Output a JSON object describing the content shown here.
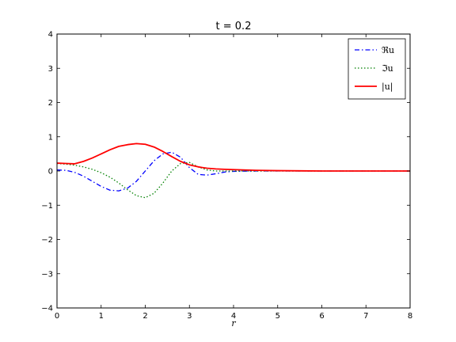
{
  "chart_data": {
    "type": "line",
    "title": "t = 0.2",
    "xlabel": "r",
    "ylabel": "",
    "xlim": [
      0,
      8
    ],
    "ylim": [
      -4,
      4
    ],
    "xticks": [
      0,
      1,
      2,
      3,
      4,
      5,
      6,
      7,
      8
    ],
    "yticks": [
      -4,
      -3,
      -2,
      -1,
      0,
      1,
      2,
      3,
      4
    ],
    "grid": false,
    "legend": "top-right",
    "series": [
      {
        "name": "ℜu",
        "color": "#0000ff",
        "style": "dashdot",
        "x": [
          0,
          0.2,
          0.4,
          0.6,
          0.8,
          1.0,
          1.2,
          1.4,
          1.6,
          1.8,
          2.0,
          2.2,
          2.4,
          2.6,
          2.8,
          3.0,
          3.2,
          3.4,
          3.6,
          3.8,
          4.0,
          4.5,
          5.0,
          6.0,
          7.0,
          8.0
        ],
        "y": [
          0.03,
          0.02,
          -0.04,
          -0.15,
          -0.3,
          -0.45,
          -0.56,
          -0.58,
          -0.5,
          -0.3,
          0.0,
          0.3,
          0.5,
          0.55,
          0.4,
          0.1,
          -0.1,
          -0.12,
          -0.08,
          -0.03,
          -0.01,
          0.0,
          0.0,
          0.0,
          0.0,
          0.0
        ]
      },
      {
        "name": "ℑu",
        "color": "#008000",
        "style": "dotted",
        "x": [
          0,
          0.2,
          0.4,
          0.6,
          0.8,
          1.0,
          1.2,
          1.4,
          1.6,
          1.8,
          2.0,
          2.2,
          2.4,
          2.6,
          2.8,
          3.0,
          3.2,
          3.4,
          3.6,
          3.8,
          4.0,
          4.5,
          5.0,
          6.0,
          7.0,
          8.0
        ],
        "y": [
          0.22,
          0.2,
          0.17,
          0.12,
          0.05,
          -0.05,
          -0.18,
          -0.35,
          -0.55,
          -0.72,
          -0.78,
          -0.65,
          -0.35,
          0.0,
          0.22,
          0.25,
          0.12,
          0.03,
          0.0,
          0.0,
          0.0,
          0.0,
          0.0,
          0.0,
          0.0,
          0.0
        ]
      },
      {
        "name": "|u|",
        "color": "#ff0000",
        "style": "solid",
        "x": [
          0,
          0.2,
          0.4,
          0.6,
          0.8,
          1.0,
          1.2,
          1.4,
          1.6,
          1.8,
          2.0,
          2.2,
          2.4,
          2.6,
          2.8,
          3.0,
          3.2,
          3.4,
          3.6,
          3.8,
          4.0,
          4.5,
          5.0,
          6.0,
          7.0,
          8.0
        ],
        "y": [
          0.23,
          0.22,
          0.21,
          0.28,
          0.38,
          0.5,
          0.62,
          0.72,
          0.77,
          0.8,
          0.78,
          0.7,
          0.57,
          0.42,
          0.28,
          0.18,
          0.12,
          0.08,
          0.06,
          0.05,
          0.04,
          0.02,
          0.01,
          0.0,
          0.0,
          0.0
        ]
      }
    ]
  }
}
